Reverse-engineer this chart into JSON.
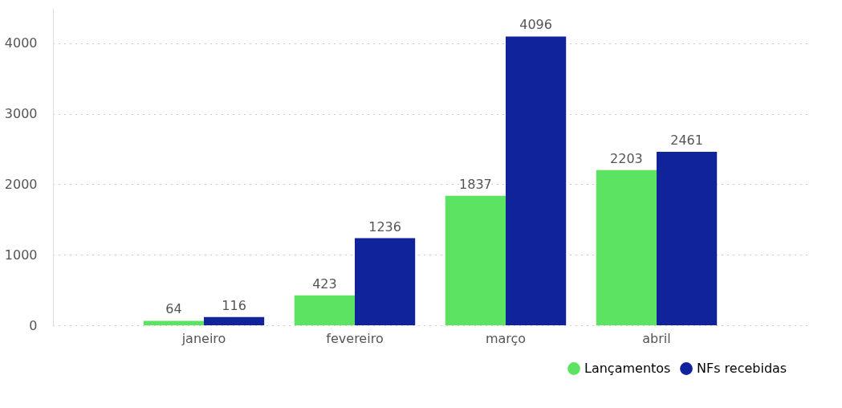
{
  "chart_data": {
    "type": "bar",
    "categories": [
      "janeiro",
      "fevereiro",
      "março",
      "abril"
    ],
    "series": [
      {
        "name": "Lançamentos",
        "color": "#5ce362",
        "values": [
          64,
          423,
          1837,
          2203
        ]
      },
      {
        "name": "NFs recebidas",
        "color": "#11239b",
        "values": [
          116,
          1236,
          4096,
          2461
        ]
      }
    ],
    "ylim": [
      0,
      4500
    ],
    "yticks": [
      0,
      1000,
      2000,
      3000,
      4000
    ],
    "grid": "y",
    "legend": "bottom right",
    "data_labels": true
  }
}
